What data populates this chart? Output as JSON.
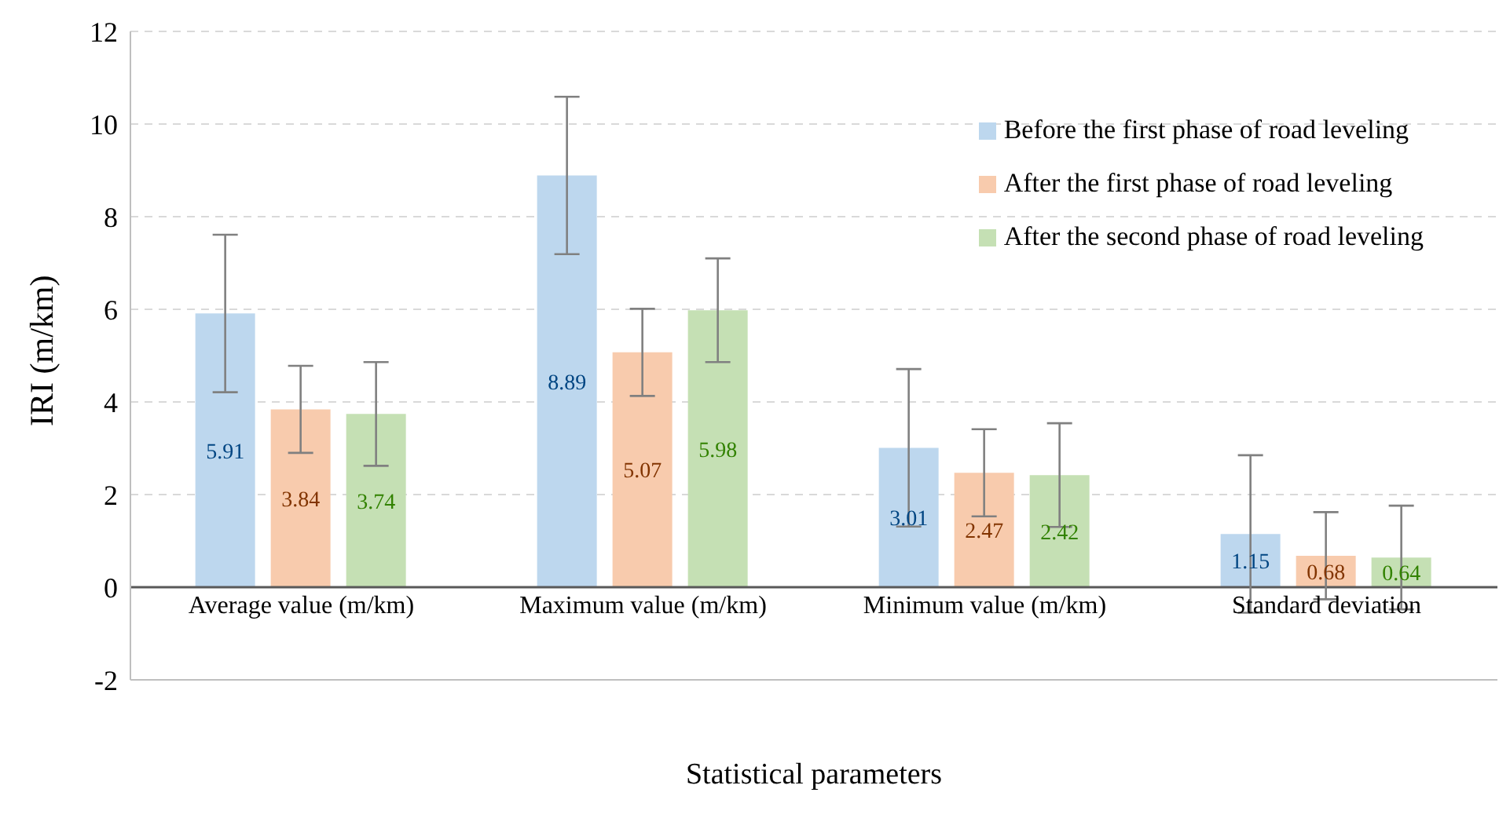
{
  "chart_data": {
    "type": "bar",
    "xlabel": "Statistical parameters",
    "ylabel": "IRI (m/km)",
    "categories": [
      "Average value (m/km)",
      "Maximum value (m/km)",
      "Minimum value (m/km)",
      "Standard deviation"
    ],
    "series": [
      {
        "name": "Before the first phase of road leveling",
        "color": "#bdd7ee",
        "values": [
          5.91,
          8.89,
          3.01,
          1.15
        ],
        "errors": [
          1.7,
          1.7,
          1.7,
          1.7
        ]
      },
      {
        "name": "After the first phase of road leveling",
        "color": "#f8cbad",
        "values": [
          3.84,
          5.07,
          2.47,
          0.68
        ],
        "errors": [
          0.94,
          0.94,
          0.94,
          0.94
        ]
      },
      {
        "name": "After the second phase of road leveling",
        "color": "#c5e0b4",
        "values": [
          3.74,
          5.98,
          2.42,
          0.64
        ],
        "errors": [
          1.12,
          1.12,
          1.12,
          1.12
        ]
      }
    ],
    "ylim": [
      -2,
      12
    ],
    "yticks": [
      -2,
      0,
      2,
      4,
      6,
      8,
      10,
      12
    ],
    "grid": "y",
    "legend": "top right",
    "data_labels": true
  }
}
